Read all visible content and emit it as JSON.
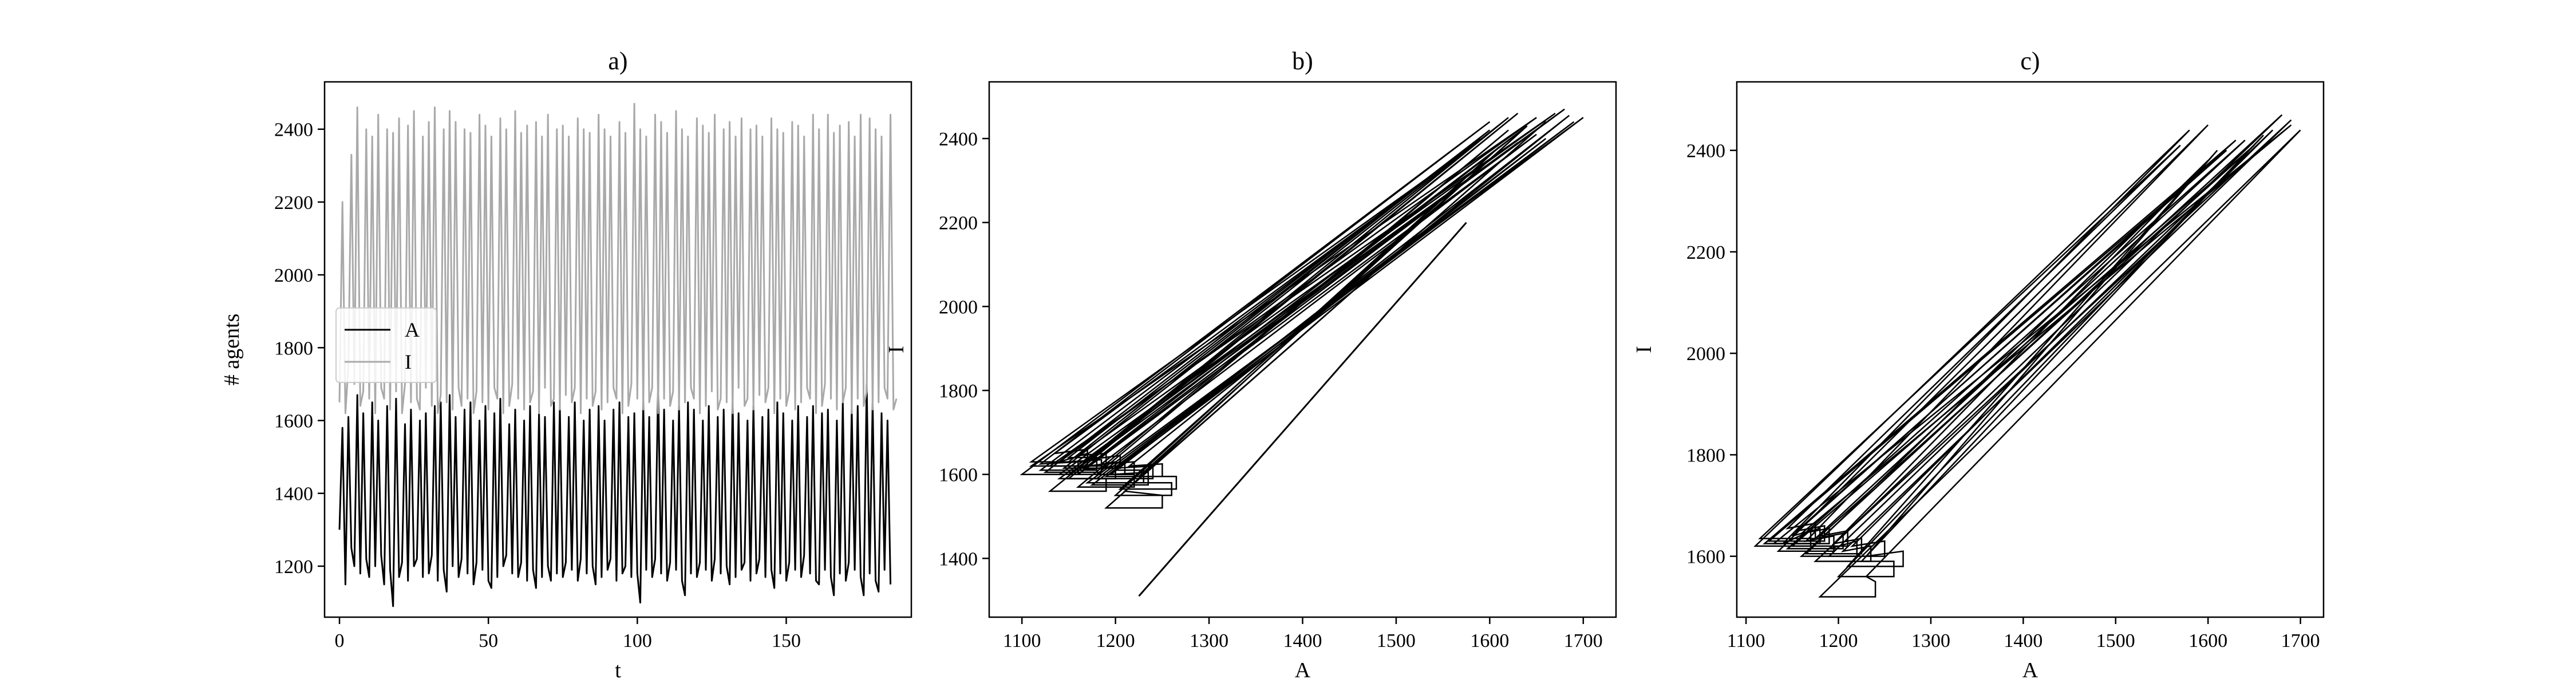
{
  "chart_data": [
    {
      "id": "a",
      "type": "line",
      "title": "a)",
      "xlabel": "t",
      "ylabel": "# agents",
      "xlim": [
        -5,
        192
      ],
      "ylim": [
        1060,
        2530
      ],
      "xticks": [
        0,
        50,
        100,
        150
      ],
      "yticks": [
        1200,
        1400,
        1600,
        1800,
        2000,
        2200,
        2400
      ],
      "legend": {
        "placement": "center-left"
      },
      "series": [
        {
          "name": "A",
          "color": "#000000",
          "x_start": 0,
          "x_step": 1,
          "values": [
            1300,
            1580,
            1150,
            1610,
            1250,
            1200,
            1670,
            1180,
            1620,
            1220,
            1170,
            1650,
            1200,
            1600,
            1230,
            1150,
            1640,
            1190,
            1090,
            1660,
            1170,
            1210,
            1590,
            1160,
            1630,
            1200,
            1220,
            1600,
            1170,
            1620,
            1180,
            1230,
            1640,
            1160,
            1650,
            1190,
            1130,
            1670,
            1200,
            1610,
            1170,
            1220,
            1630,
            1180,
            1650,
            1150,
            1210,
            1600,
            1190,
            1640,
            1160,
            1140,
            1620,
            1170,
            1660,
            1200,
            1230,
            1590,
            1180,
            1630,
            1170,
            1210,
            1600,
            1160,
            1640,
            1190,
            1140,
            1620,
            1170,
            1610,
            1200,
            1160,
            1650,
            1180,
            1640,
            1170,
            1210,
            1610,
            1190,
            1650,
            1160,
            1220,
            1600,
            1180,
            1630,
            1200,
            1150,
            1640,
            1170,
            1600,
            1190,
            1220,
            1630,
            1160,
            1650,
            1180,
            1200,
            1610,
            1170,
            1620,
            1180,
            1100,
            1650,
            1190,
            1610,
            1170,
            1220,
            1700,
            1180,
            1630,
            1160,
            1210,
            1600,
            1190,
            1640,
            1160,
            1120,
            1650,
            1180,
            1630,
            1170,
            1210,
            1600,
            1190,
            1640,
            1160,
            1220,
            1610,
            1180,
            1630,
            1200,
            1150,
            1650,
            1170,
            1620,
            1190,
            1210,
            1600,
            1160,
            1640,
            1180,
            1220,
            1610,
            1170,
            1630,
            1190,
            1140,
            1650,
            1180,
            1620,
            1160,
            1210,
            1600,
            1190,
            1640,
            1170,
            1230,
            1610,
            1180,
            1640,
            1160,
            1150,
            1620,
            1190,
            1630,
            1170,
            1120,
            1600,
            1180,
            1650,
            1160,
            1210,
            1630,
            1190,
            1640,
            1170,
            1120,
            1700,
            1180,
            1650,
            1160,
            1130,
            1620,
            1190,
            1600,
            1150
          ]
        },
        {
          "name": "I",
          "color": "#a9a9a9",
          "x_start": 0,
          "x_step": 1,
          "values": [
            1650,
            2200,
            1620,
            1750,
            2330,
            1700,
            2460,
            1640,
            1680,
            2400,
            1660,
            2380,
            1620,
            2440,
            1690,
            1660,
            2400,
            1630,
            2390,
            1680,
            2430,
            1620,
            1700,
            2410,
            1650,
            2450,
            1660,
            1630,
            2380,
            1690,
            2420,
            1640,
            2460,
            1620,
            1670,
            2400,
            1650,
            2450,
            1630,
            2420,
            1690,
            1640,
            2400,
            1660,
            2390,
            1620,
            1680,
            2440,
            1650,
            2410,
            1630,
            2380,
            1690,
            1660,
            2430,
            1620,
            2400,
            1640,
            1700,
            2450,
            1660,
            2390,
            1630,
            2410,
            1650,
            1680,
            2420,
            1620,
            2380,
            1690,
            2440,
            1640,
            1660,
            2400,
            1630,
            2410,
            1670,
            2380,
            1650,
            1690,
            2430,
            1620,
            2400,
            1660,
            2390,
            1640,
            1680,
            2440,
            1630,
            2400,
            1650,
            2380,
            1690,
            1660,
            2420,
            1620,
            2390,
            1640,
            1700,
            2470,
            1660,
            2400,
            1630,
            2380,
            1650,
            1690,
            2440,
            1620,
            2420,
            1660,
            2390,
            1640,
            1680,
            2450,
            1630,
            2400,
            1650,
            2380,
            1690,
            1660,
            2430,
            1620,
            2410,
            1640,
            2390,
            1680,
            2440,
            1630,
            1660,
            2400,
            1650,
            2420,
            1620,
            2380,
            1690,
            2430,
            1640,
            1660,
            2400,
            1630,
            2410,
            1670,
            2380,
            1650,
            1690,
            2430,
            1620,
            2400,
            1660,
            2390,
            1640,
            1680,
            2420,
            1630,
            2410,
            1650,
            2380,
            1690,
            1660,
            2440,
            1620,
            2400,
            1640,
            1700,
            2440,
            1660,
            2390,
            1630,
            2410,
            1650,
            1690,
            2420,
            1620,
            2380,
            1660,
            2440,
            1640,
            1680,
            2430,
            1630,
            2400,
            1650,
            2380,
            1690,
            1660,
            2440,
            1630,
            1660
          ]
        }
      ]
    },
    {
      "id": "b",
      "type": "line",
      "title": "b)",
      "xlabel": "A",
      "ylabel": "I",
      "xlim": [
        1065,
        1735
      ],
      "ylim": [
        1260,
        2535
      ],
      "xticks": [
        1100,
        1200,
        1300,
        1400,
        1500,
        1600,
        1700
      ],
      "yticks": [
        1400,
        1600,
        1800,
        2000,
        2200,
        2400
      ],
      "series": [
        {
          "color": "#000000",
          "initial_path": [
            [
              1225,
              1310
            ],
            [
              1575,
              2200
            ]
          ],
          "loops": [
            [
              [
                1100,
                1600
              ],
              [
                1120,
                1625
              ],
              [
                1600,
                2440
              ]
            ],
            [
              [
                1130,
                1560
              ],
              [
                1150,
                1590
              ],
              [
                1630,
                2460
              ]
            ],
            [
              [
                1110,
                1620
              ],
              [
                1140,
                1630
              ],
              [
                1650,
                2450
              ]
            ],
            [
              [
                1160,
                1570
              ],
              [
                1180,
                1600
              ],
              [
                1620,
                2420
              ]
            ],
            [
              [
                1140,
                1600
              ],
              [
                1160,
                1615
              ],
              [
                1680,
                2470
              ]
            ],
            [
              [
                1190,
                1520
              ],
              [
                1210,
                1560
              ],
              [
                1660,
                2440
              ]
            ],
            [
              [
                1120,
                1610
              ],
              [
                1150,
                1640
              ],
              [
                1590,
                2400
              ]
            ],
            [
              [
                1170,
                1580
              ],
              [
                1200,
                1610
              ],
              [
                1700,
                2450
              ]
            ],
            [
              [
                1150,
                1600
              ],
              [
                1170,
                1620
              ],
              [
                1640,
                2430
              ]
            ],
            [
              [
                1200,
                1550
              ],
              [
                1220,
                1580
              ],
              [
                1610,
                2380
              ]
            ],
            [
              [
                1130,
                1620
              ],
              [
                1160,
                1645
              ],
              [
                1670,
                2460
              ]
            ],
            [
              [
                1180,
                1590
              ],
              [
                1200,
                1615
              ],
              [
                1690,
                2440
              ]
            ],
            [
              [
                1110,
                1630
              ],
              [
                1135,
                1650
              ],
              [
                1580,
                2380
              ]
            ],
            [
              [
                1160,
                1600
              ],
              [
                1185,
                1625
              ],
              [
                1650,
                2410
              ]
            ],
            [
              [
                1145,
                1615
              ],
              [
                1170,
                1635
              ],
              [
                1620,
                2450
              ]
            ],
            [
              [
                1175,
                1575
              ],
              [
                1195,
                1600
              ],
              [
                1660,
                2400
              ]
            ],
            [
              [
                1125,
                1605
              ],
              [
                1150,
                1630
              ],
              [
                1600,
                2420
              ]
            ],
            [
              [
                1190,
                1595
              ],
              [
                1215,
                1620
              ],
              [
                1685,
                2455
              ]
            ],
            [
              [
                1140,
                1590
              ],
              [
                1165,
                1610
              ],
              [
                1630,
                2390
              ]
            ],
            [
              [
                1205,
                1565
              ],
              [
                1225,
                1595
              ],
              [
                1640,
                2430
              ]
            ]
          ]
        }
      ]
    },
    {
      "id": "c",
      "type": "line",
      "title": "c)",
      "xlabel": "A",
      "ylabel": "I",
      "xlim": [
        1090,
        1725
      ],
      "ylim": [
        1480,
        2535
      ],
      "xticks": [
        1100,
        1200,
        1300,
        1400,
        1500,
        1600,
        1700
      ],
      "yticks": [
        1600,
        1800,
        2000,
        2200,
        2400
      ],
      "series": [
        {
          "color": "#000000",
          "loops": [
            [
              [
                1110,
                1620
              ],
              [
                1140,
                1625
              ],
              [
                1580,
                2440
              ]
            ],
            [
              [
                1180,
                1520
              ],
              [
                1230,
                1560
              ],
              [
                1700,
                2440
              ]
            ],
            [
              [
                1120,
                1625
              ],
              [
                1150,
                1640
              ],
              [
                1630,
                2420
              ]
            ],
            [
              [
                1160,
                1600
              ],
              [
                1190,
                1615
              ],
              [
                1680,
                2470
              ]
            ],
            [
              [
                1135,
                1610
              ],
              [
                1165,
                1630
              ],
              [
                1600,
                2450
              ]
            ],
            [
              [
                1200,
                1560
              ],
              [
                1225,
                1590
              ],
              [
                1660,
                2430
              ]
            ],
            [
              [
                1125,
                1630
              ],
              [
                1155,
                1650
              ],
              [
                1620,
                2400
              ]
            ],
            [
              [
                1175,
                1590
              ],
              [
                1205,
                1610
              ],
              [
                1690,
                2460
              ]
            ],
            [
              [
                1145,
                1615
              ],
              [
                1175,
                1635
              ],
              [
                1640,
                2420
              ]
            ],
            [
              [
                1210,
                1580
              ],
              [
                1230,
                1600
              ],
              [
                1610,
                2400
              ]
            ],
            [
              [
                1115,
                1635
              ],
              [
                1145,
                1655
              ],
              [
                1570,
                2410
              ]
            ],
            [
              [
                1190,
                1600
              ],
              [
                1215,
                1620
              ],
              [
                1670,
                2440
              ]
            ],
            [
              [
                1150,
                1620
              ],
              [
                1180,
                1640
              ],
              [
                1650,
                2410
              ]
            ],
            [
              [
                1165,
                1605
              ],
              [
                1195,
                1625
              ],
              [
                1600,
                2380
              ]
            ],
            [
              [
                1130,
                1625
              ],
              [
                1160,
                1645
              ],
              [
                1690,
                2450
              ]
            ]
          ]
        }
      ]
    }
  ]
}
